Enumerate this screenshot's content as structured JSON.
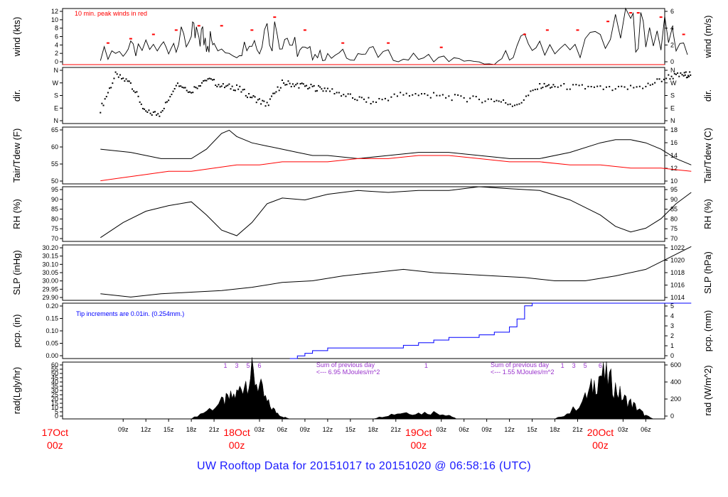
{
  "footer": {
    "title": "UW Rooftop Data for 20151017  to  20151020 @ 06:58:16  (UTC)"
  },
  "colors": {
    "frame": "#000000",
    "wind_peak": "#ff0000",
    "tdew": "#ff0000",
    "pcp": "#0000ff",
    "footer": "#1a1aff",
    "notes": "#9933cc",
    "date": "#ff0000"
  },
  "chart_data": [
    {
      "id": "wind",
      "type": "line",
      "ylabel_left": "wind (kts)",
      "ylabel_right": "wind (m/s)",
      "yticks_left": [
        "0",
        "2",
        "4",
        "6",
        "8",
        "10",
        "12"
      ],
      "yticks_right": [
        "0",
        "2",
        "4",
        "6"
      ],
      "ylim": [
        0,
        13
      ],
      "note": "10 min. peak winds in red",
      "series": [
        {
          "x": [
            0,
            3,
            5,
            8,
            10,
            12,
            13,
            14,
            15,
            18,
            20,
            22,
            24,
            26,
            28,
            30,
            33,
            36,
            40,
            44,
            48,
            52,
            55,
            58,
            62,
            66,
            70,
            72,
            75,
            78
          ],
          "values": [
            3,
            4,
            4,
            5,
            6,
            7,
            8,
            7,
            6,
            5,
            6,
            9,
            9,
            4,
            3,
            2,
            3,
            3,
            2,
            2,
            1,
            0,
            5,
            6,
            4,
            7,
            10,
            9,
            8,
            4
          ]
        },
        {
          "x": [
            1,
            4,
            7,
            10,
            13,
            16,
            20,
            23,
            27,
            32,
            38,
            45,
            56,
            59,
            63,
            67,
            70,
            71,
            74,
            77
          ],
          "values": [
            5,
            6,
            7,
            8,
            9,
            9,
            8,
            11,
            8,
            5,
            5,
            4,
            7,
            8,
            8,
            10,
            12,
            12,
            11,
            7
          ]
        }
      ]
    },
    {
      "id": "dir",
      "type": "scatter",
      "ylabel_left": "dir.",
      "ylabel_right": "dir.",
      "yticks_left": [
        "N",
        "E",
        "S",
        "W",
        "N"
      ],
      "yticks_right": [
        "N",
        "E",
        "S",
        "W",
        "N"
      ],
      "ylim": [
        0,
        360
      ],
      "x": [
        0,
        2,
        4,
        6,
        8,
        10,
        12,
        14,
        16,
        18,
        20,
        22,
        24,
        26,
        28,
        30,
        33,
        36,
        40,
        44,
        48,
        52,
        55,
        58,
        60,
        64,
        68,
        72,
        75,
        77,
        78
      ],
      "values": [
        90,
        310,
        260,
        70,
        60,
        260,
        210,
        290,
        240,
        230,
        170,
        120,
        260,
        250,
        230,
        220,
        170,
        140,
        190,
        180,
        160,
        150,
        120,
        240,
        240,
        230,
        220,
        240,
        300,
        310,
        320
      ]
    },
    {
      "id": "temp",
      "type": "line",
      "ylabel_left": "Tair/Tdew (F)",
      "ylabel_right": "Tair/Tdew (C)",
      "yticks_left": [
        "50",
        "55",
        "60",
        "65"
      ],
      "yticks_right": [
        "10",
        "12",
        "14",
        "16",
        "18"
      ],
      "ylim": [
        49,
        67
      ],
      "series": [
        {
          "x": [
            0,
            4,
            8,
            12,
            14,
            16,
            17,
            18,
            20,
            22,
            24,
            26,
            28,
            30,
            34,
            38,
            42,
            46,
            50,
            54,
            58,
            62,
            66,
            68,
            70,
            72,
            74,
            76,
            78
          ],
          "values": [
            60,
            59,
            57,
            57,
            60,
            65,
            66,
            64,
            62,
            61,
            60,
            59,
            58,
            58,
            57,
            58,
            59,
            59,
            58,
            57,
            57,
            59,
            62,
            63,
            63,
            62,
            60,
            57,
            55
          ]
        },
        {
          "x": [
            0,
            3,
            6,
            9,
            12,
            15,
            18,
            21,
            24,
            27,
            30,
            34,
            38,
            42,
            46,
            50,
            54,
            58,
            62,
            66,
            70,
            74,
            78
          ],
          "values": [
            50,
            51,
            52,
            53,
            53,
            54,
            55,
            55,
            56,
            56,
            56,
            57,
            57,
            58,
            58,
            57,
            56,
            56,
            55,
            55,
            54,
            54,
            53
          ]
        }
      ]
    },
    {
      "id": "rh",
      "type": "line",
      "ylabel_left": "RH (%)",
      "ylabel_right": "RH (%)",
      "yticks_left": [
        "70",
        "75",
        "80",
        "85",
        "90",
        "95"
      ],
      "yticks_right": [
        "70",
        "75",
        "80",
        "85",
        "90",
        "95"
      ],
      "ylim": [
        68,
        97
      ],
      "x": [
        0,
        3,
        6,
        9,
        12,
        14,
        16,
        18,
        20,
        22,
        24,
        27,
        30,
        34,
        38,
        42,
        46,
        50,
        54,
        58,
        62,
        66,
        68,
        70,
        72,
        74,
        76,
        78
      ],
      "values": [
        70,
        78,
        84,
        87,
        89,
        82,
        74,
        71,
        78,
        88,
        91,
        90,
        93,
        95,
        94,
        95,
        95,
        97,
        96,
        95,
        90,
        82,
        76,
        73,
        75,
        80,
        88,
        94
      ]
    },
    {
      "id": "slp",
      "type": "line",
      "ylabel_left": "SLP (inHg)",
      "ylabel_right": "SLP (hPa)",
      "yticks_left": [
        "29.90",
        "29.95",
        "30.00",
        "30.05",
        "30.10",
        "30.15",
        "30.20"
      ],
      "yticks_right": [
        "1014",
        "1016",
        "1018",
        "1020",
        "1022"
      ],
      "ylim": [
        29.89,
        30.23
      ],
      "x": [
        0,
        4,
        8,
        12,
        16,
        20,
        24,
        28,
        32,
        36,
        40,
        44,
        48,
        52,
        56,
        60,
        64,
        68,
        72,
        75,
        78
      ],
      "values": [
        29.93,
        29.91,
        29.93,
        29.94,
        29.95,
        29.97,
        30.0,
        30.01,
        30.04,
        30.06,
        30.08,
        30.06,
        30.05,
        30.04,
        30.03,
        30.01,
        30.01,
        30.04,
        30.08,
        30.15,
        30.22
      ]
    },
    {
      "id": "pcp",
      "type": "line",
      "ylabel_left": "pcp. (in)",
      "ylabel_right": "pcp. (mm)",
      "yticks_left": [
        "0.00",
        "0.05",
        "0.10",
        "0.15",
        "0.20"
      ],
      "yticks_right": [
        "0",
        "1",
        "2",
        "3",
        "4",
        "5"
      ],
      "ylim": [
        0,
        0.21
      ],
      "note": "Tip increments are 0.01in. (0.254mm.)",
      "x": [
        0,
        25,
        26,
        27,
        28,
        30,
        38,
        40,
        42,
        44,
        46,
        50,
        52,
        54,
        55,
        56,
        57,
        78
      ],
      "values": [
        0,
        0,
        0.01,
        0.02,
        0.03,
        0.04,
        0.04,
        0.05,
        0.06,
        0.07,
        0.08,
        0.09,
        0.1,
        0.12,
        0.15,
        0.2,
        0.21,
        0.21
      ]
    },
    {
      "id": "rad",
      "type": "area",
      "ylabel_left": "rad(Lgly/hr)",
      "ylabel_right": "rad (W/m^2)",
      "yticks_left": [
        "0",
        "5",
        "10",
        "15",
        "20",
        "25",
        "30",
        "35",
        "40",
        "45",
        "50",
        "55",
        "60"
      ],
      "yticks_right": [
        "0",
        "200",
        "400",
        "600"
      ],
      "ylim": [
        0,
        63
      ],
      "x": [
        12,
        14,
        16,
        17,
        18,
        19,
        20,
        21,
        22,
        23,
        24,
        25,
        36,
        38,
        40,
        42,
        44,
        46,
        47,
        60,
        62,
        64,
        65,
        66,
        67,
        68,
        69,
        70,
        71,
        72,
        73
      ],
      "values": [
        0,
        10,
        20,
        25,
        30,
        45,
        55,
        40,
        20,
        10,
        3,
        0,
        0,
        5,
        8,
        7,
        8,
        5,
        0,
        0,
        8,
        25,
        40,
        55,
        50,
        38,
        25,
        20,
        12,
        4,
        0
      ],
      "markers": [
        "1",
        "3",
        "5",
        "6",
        "1",
        "1",
        "3",
        "5",
        "6"
      ],
      "notes": [
        {
          "line1": "Sum of previous day",
          "line2": "<--- 6.95 MJoules/m^2"
        },
        {
          "line1": "Sum of previous day",
          "line2": "<--- 1.55 MJoules/m^2"
        }
      ]
    }
  ],
  "x_axis": {
    "hour_labels": [
      "09z",
      "12z",
      "15z",
      "18z",
      "21z",
      "03z",
      "06z",
      "09z",
      "12z",
      "15z",
      "18z",
      "21z",
      "03z",
      "06z",
      "09z",
      "12z",
      "15z",
      "18z",
      "21z",
      "03z",
      "06z"
    ],
    "hour_positions": [
      3,
      6,
      9,
      12,
      15,
      21,
      24,
      27,
      30,
      33,
      36,
      39,
      45,
      48,
      51,
      54,
      57,
      60,
      63,
      69,
      72
    ],
    "date_labels": [
      {
        "date": "17Oct",
        "hour": "00z",
        "pos": -6
      },
      {
        "date": "18Oct",
        "hour": "00z",
        "pos": 18
      },
      {
        "date": "19Oct",
        "hour": "00z",
        "pos": 42
      },
      {
        "date": "20Oct",
        "hour": "00z",
        "pos": 66
      }
    ],
    "range": [
      -5,
      74.5
    ]
  }
}
